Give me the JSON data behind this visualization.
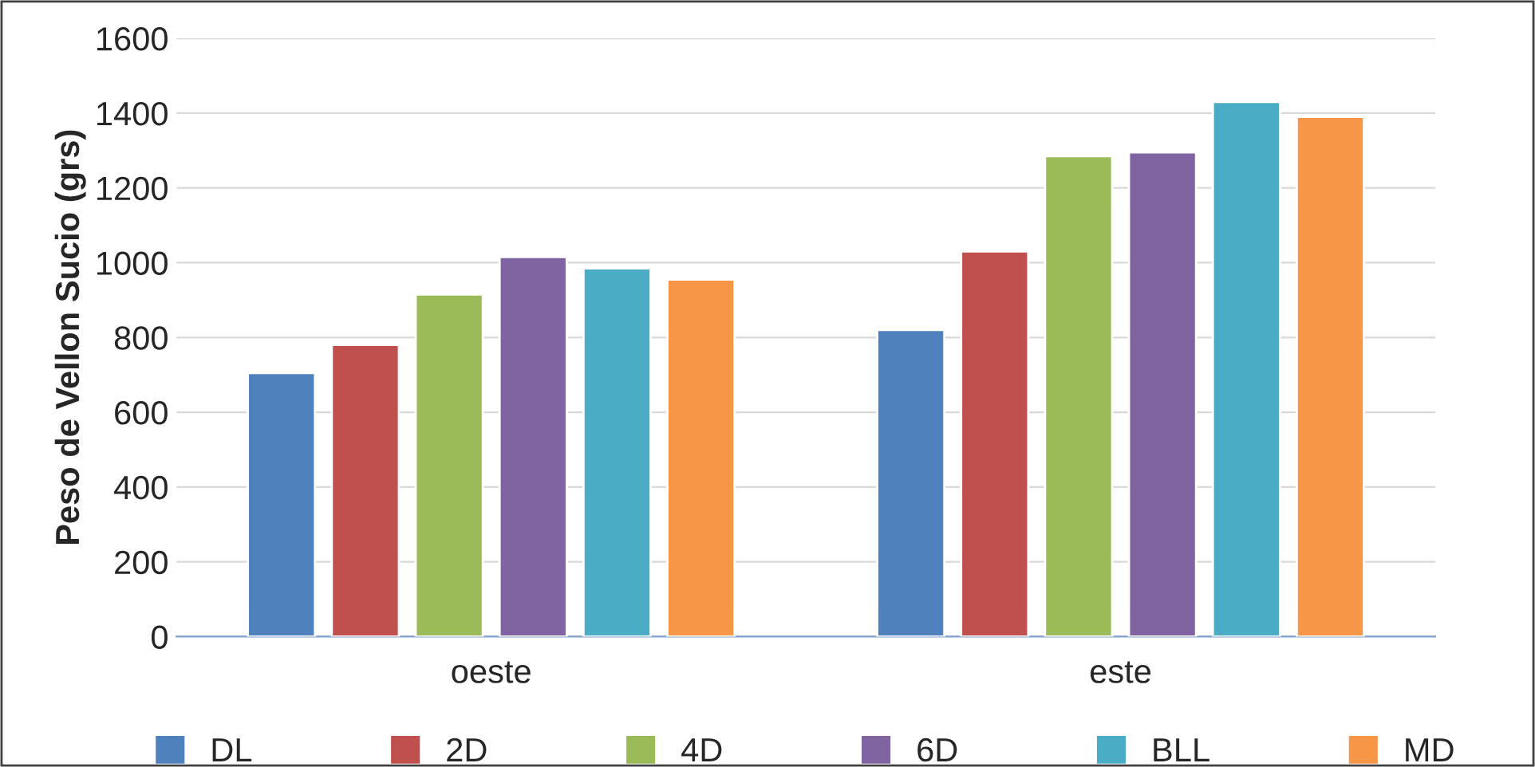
{
  "chart_data": {
    "type": "bar",
    "ylabel": "Peso de Vellon Sucio (grs)",
    "categories": [
      "oeste",
      "este"
    ],
    "series": [
      {
        "name": "DL",
        "color": "#4f81bd",
        "values": [
          705,
          820
        ]
      },
      {
        "name": "2D",
        "color": "#c0504d",
        "values": [
          780,
          1030
        ]
      },
      {
        "name": "4D",
        "color": "#9bbb59",
        "values": [
          915,
          1285
        ]
      },
      {
        "name": "6D",
        "color": "#8064a2",
        "values": [
          1015,
          1295
        ]
      },
      {
        "name": "BLL",
        "color": "#4bacc6",
        "values": [
          985,
          1430
        ]
      },
      {
        "name": "MD",
        "color": "#f79646",
        "values": [
          955,
          1390
        ]
      }
    ],
    "ylim": [
      0,
      1600
    ],
    "yticks": [
      0,
      200,
      400,
      600,
      800,
      1000,
      1200,
      1400,
      1600
    ],
    "grid": "y",
    "legend": "bottom"
  }
}
